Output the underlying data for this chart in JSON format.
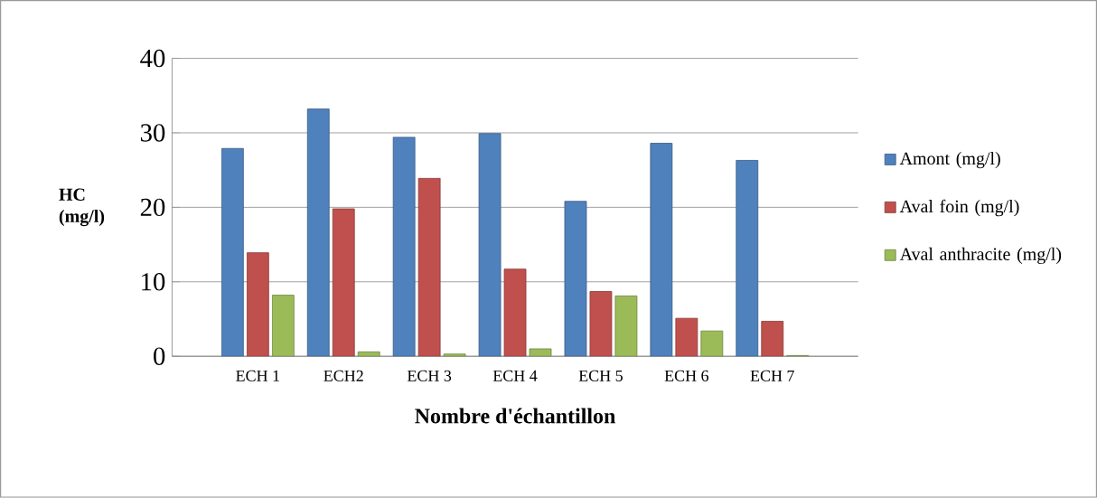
{
  "chart_data": {
    "type": "bar",
    "xlabel": "Nombre d'échantillon",
    "ylabel": "HC (mg/l)",
    "categories": [
      "ECH 1",
      "ECH2",
      "ECH 3",
      "ECH 4",
      "ECH 5",
      "ECH 6",
      "ECH 7"
    ],
    "series": [
      {
        "name": "Amont (mg/l)",
        "color": "#4f81bd",
        "values": [
          27.9,
          33.2,
          29.4,
          29.9,
          20.8,
          28.6,
          26.3
        ]
      },
      {
        "name": "Aval foin (mg/l)",
        "color": "#c0504d",
        "values": [
          13.9,
          19.8,
          23.9,
          11.7,
          8.7,
          5.1,
          4.7
        ]
      },
      {
        "name": "Aval anthracite (mg/l)",
        "color": "#9bbb59",
        "values": [
          8.2,
          0.6,
          0.3,
          1,
          8.1,
          3.4,
          0.1
        ]
      }
    ],
    "ylim": [
      0,
      40
    ],
    "yticks": [
      0,
      10,
      20,
      30,
      40
    ],
    "grid": "y",
    "legend": "right"
  }
}
